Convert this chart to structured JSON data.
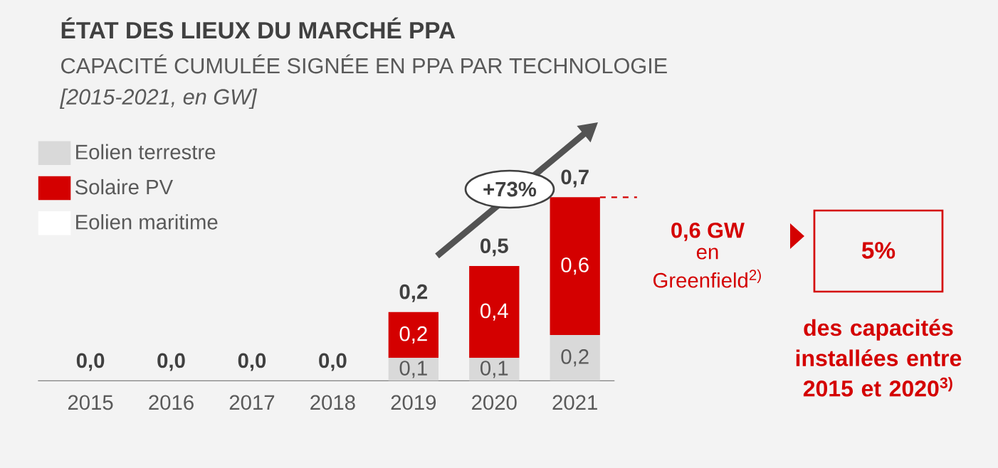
{
  "chart_data": {
    "type": "bar",
    "title": "ÉTAT DES LIEUX DU MARCHÉ PPA",
    "subtitle": "CAPACITÉ CUMULÉE SIGNÉE EN PPA PAR TECHNOLOGIE",
    "categories": [
      "2015",
      "2016",
      "2017",
      "2018",
      "2019",
      "2020",
      "2021"
    ],
    "stacked": true,
    "legend": "top left",
    "series": [
      {
        "name": "Eolien terrestre",
        "color": "#d9d9d9",
        "values": [
          0,
          0,
          0,
          0,
          0.1,
          0.1,
          0.2
        ],
        "value_labels": [
          null,
          null,
          null,
          null,
          "0,1",
          "0,1",
          "0,2"
        ]
      },
      {
        "name": "Solaire PV",
        "color": "#d40000",
        "values": [
          0,
          0,
          0,
          0,
          0.2,
          0.4,
          0.6
        ],
        "value_labels": [
          null,
          null,
          null,
          null,
          "0,2",
          "0,4",
          "0,6"
        ]
      },
      {
        "name": "Eolien maritime",
        "color": "#ffffff",
        "values": [
          0,
          0,
          0,
          0,
          0,
          0,
          0
        ]
      }
    ],
    "totals": [
      "0,0",
      "0,0",
      "0,0",
      "0,0",
      "0,2",
      "0,5",
      "0,7"
    ],
    "annotations": [
      "[2015-2021, en GW]",
      "+73%",
      "0,6 GW",
      "en Greenfield$^{2)}$",
      "5%",
      "des capacités installées entre 2015 et 2020$^{3)}$"
    ]
  }
}
